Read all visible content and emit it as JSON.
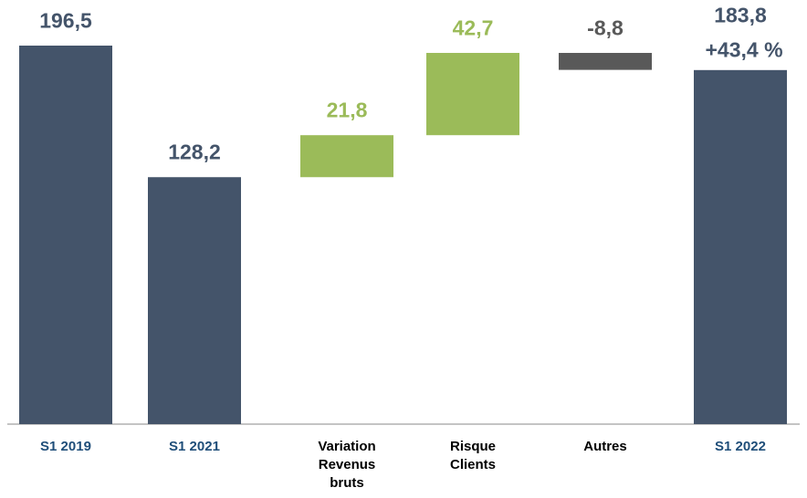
{
  "chart_data": {
    "type": "waterfall",
    "categories": [
      "S1 2019",
      "S1 2021",
      "Variation Revenus bruts",
      "Risque Clients",
      "Autres",
      "S1 2022"
    ],
    "values": [
      196.5,
      128.2,
      21.8,
      42.7,
      -8.8,
      183.8
    ],
    "value_labels": [
      "196,5",
      "128,2",
      "21,8",
      "42,7",
      "-8,8",
      "183,8"
    ],
    "measures": [
      "total",
      "total",
      "relative",
      "relative",
      "relative",
      "total"
    ],
    "colors": [
      "#44546a",
      "#44546a",
      "#9bbb59",
      "#9bbb59",
      "#595959",
      "#44546a"
    ],
    "label_colors": [
      "#44546a",
      "#44546a",
      "#9bbb59",
      "#9bbb59",
      "#595959",
      "#44546a"
    ],
    "category_colors": [
      "#1f4e79",
      "#1f4e79",
      "#000000",
      "#000000",
      "#000000",
      "#1f4e79"
    ],
    "annotations": [
      {
        "text": "+43,4 %",
        "category": 5
      }
    ]
  }
}
